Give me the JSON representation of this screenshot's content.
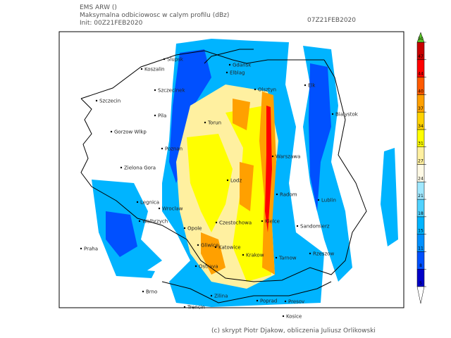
{
  "header": {
    "model": "EMS ARW ()",
    "field": "Maksymalna odbiciowosc w calym profilu (dBz)",
    "init": "Init: 00Z21FEB2020",
    "valid": "07Z21FEB2020"
  },
  "colorbar": {
    "ticks": [
      5,
      8,
      11,
      15,
      18,
      21,
      24,
      27,
      31,
      34,
      37,
      40,
      44,
      47,
      50
    ],
    "colors": [
      "#0000c8",
      "#0050ff",
      "#0090ff",
      "#00b4ff",
      "#50d2ff",
      "#a0e8ff",
      "#fffae6",
      "#fff0a0",
      "#ffff00",
      "#ffd200",
      "#ffa000",
      "#ff5a00",
      "#ff0000",
      "#c80000"
    ],
    "under_color": "#ffffff",
    "over_color": "#5cc82a"
  },
  "cities": [
    "Slupsk",
    "Gdansk",
    "Koszalin",
    "Elblag",
    "Olsztyn",
    "Elk",
    "Szczecinek",
    "Szczecin",
    "Pila",
    "Bialystok",
    "Torun",
    "Gorzow Wlkp",
    "Poznan",
    "Warszawa",
    "Zielona Gora",
    "Lodz",
    "Radom",
    "Lublin",
    "Legnica",
    "Wroclaw",
    "Walbrzych",
    "Kielce",
    "Czestochowa",
    "Sandomierz",
    "Opole",
    "Praha",
    "Rzeszow",
    "Katowice",
    "Gliwice",
    "Krakow",
    "Tarnow",
    "Ostrava",
    "Brno",
    "Zilina",
    "Poprad",
    "Presov",
    "Kosice",
    "Trencin"
  ],
  "footer": "(c) skrypt Piotr Djakow, obliczenia Juliusz Orlikowski"
}
